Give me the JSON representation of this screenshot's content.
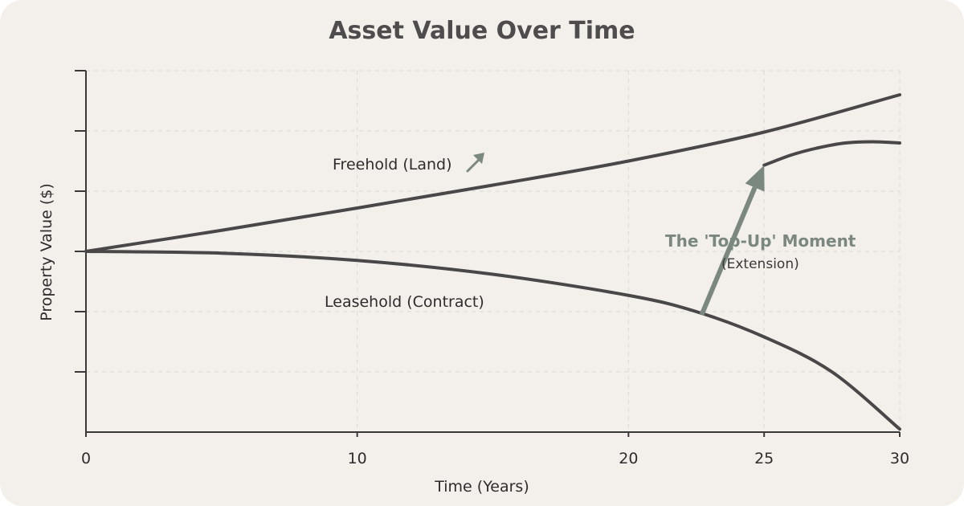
{
  "chart_data": {
    "type": "line",
    "title": "Asset Value Over Time",
    "xlabel": "Time (Years)",
    "ylabel": "Property Value ($)",
    "xlim": [
      0,
      30
    ],
    "ylim": [
      0,
      6
    ],
    "x_ticks": [
      0,
      10,
      20,
      25,
      30
    ],
    "y_tick_count": 6,
    "grid": true,
    "colors": {
      "line": "#4a4748",
      "accent": "#7b887f",
      "background": "#f3efeb",
      "grid": "#dcd8d4"
    },
    "series": [
      {
        "name": "Freehold (Land)",
        "label_icon": "arrow-up-right-icon",
        "points": [
          [
            0,
            3.0
          ],
          [
            5,
            3.35
          ],
          [
            10,
            3.72
          ],
          [
            15,
            4.1
          ],
          [
            20,
            4.5
          ],
          [
            25,
            4.98
          ],
          [
            30,
            5.6
          ]
        ]
      },
      {
        "name": "Leasehold (Contract)",
        "points": [
          [
            0,
            3.0
          ],
          [
            5,
            2.97
          ],
          [
            10,
            2.85
          ],
          [
            15,
            2.62
          ],
          [
            20,
            2.27
          ],
          [
            22.5,
            2.0
          ],
          [
            25,
            1.58
          ],
          [
            27.5,
            1.0
          ],
          [
            30,
            0.05
          ]
        ]
      },
      {
        "name": "",
        "points": [
          [
            25,
            4.43
          ],
          [
            26,
            4.6
          ],
          [
            27,
            4.72
          ],
          [
            28,
            4.8
          ],
          [
            29,
            4.82
          ],
          [
            30,
            4.8
          ]
        ]
      }
    ],
    "annotation": {
      "text": "The 'Top-Up' Moment",
      "subtext": "(Extension)",
      "arrow_from": [
        22.7,
        1.95
      ],
      "arrow_to": [
        25,
        4.43
      ]
    }
  }
}
